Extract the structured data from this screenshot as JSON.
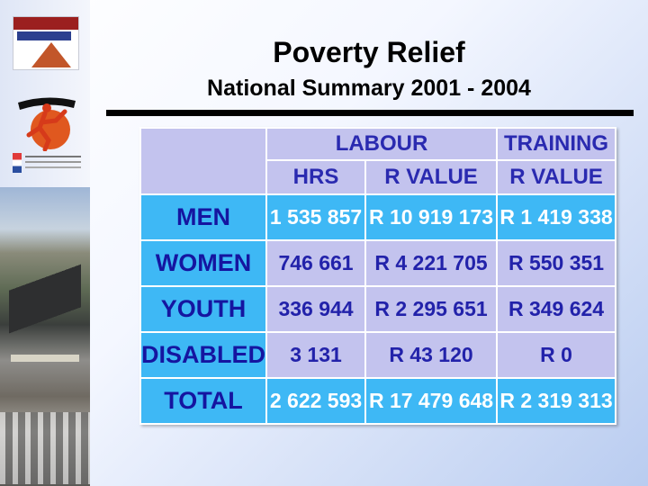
{
  "slide": {
    "title": "Poverty Relief",
    "subtitle": "National Summary 2001 - 2004"
  },
  "logos": {
    "road_agency": "roads-agency-logo",
    "runner": "runner-logo",
    "small_banner": "government-banner-logo"
  },
  "table": {
    "group_headers": [
      "LABOUR",
      "TRAINING"
    ],
    "sub_headers": [
      "HRS",
      "R VALUE",
      "R VALUE"
    ],
    "rows": [
      {
        "label": "MEN",
        "hrs": "1 535 857",
        "labour_rvalue": "R 10 919 173",
        "training_rvalue": "R 1 419 338"
      },
      {
        "label": "WOMEN",
        "hrs": "746 661",
        "labour_rvalue": "R 4 221 705",
        "training_rvalue": "R 550 351"
      },
      {
        "label": "YOUTH",
        "hrs": "336 944",
        "labour_rvalue": "R 2 295 651",
        "training_rvalue": "R 349 624"
      },
      {
        "label": "DISABLED",
        "hrs": "3 131",
        "labour_rvalue": "R 43 120",
        "training_rvalue": "R 0"
      },
      {
        "label": "TOTAL",
        "hrs": "2 622 593",
        "labour_rvalue": "R 17 479 648",
        "training_rvalue": "R 2 319 313"
      }
    ]
  },
  "colors": {
    "row_label_bg": "#3eb8f5",
    "lavender_bg": "#c3c3ee",
    "header_text": "#2a2ab0"
  }
}
